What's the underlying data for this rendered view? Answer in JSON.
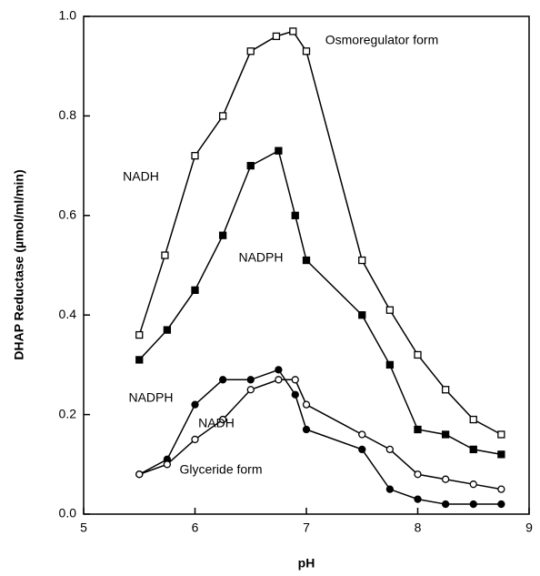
{
  "chart_data": {
    "type": "line",
    "xlabel": "pH",
    "ylabel": "DHAP Reductase (µmol/ml/min)",
    "xlim": [
      5,
      9
    ],
    "xticks": [
      5,
      6,
      7,
      8,
      9
    ],
    "ylim": [
      0,
      1
    ],
    "yticks": [
      {
        "value": 0,
        "label": "0.0"
      },
      0.2,
      0.4,
      0.6,
      0.8,
      {
        "value": 1,
        "label": "1.0"
      }
    ],
    "grid": false,
    "annotations": [
      "Osmoregulator form",
      "NADH",
      "NADPH",
      "NADPH",
      "NADH",
      "Glyceride form"
    ],
    "series": [
      {
        "color": "#000000",
        "marker": "square",
        "filled": false,
        "x": [
          5.5,
          5.73,
          6,
          6.25,
          6.5,
          6.73,
          6.88,
          7,
          7.5,
          7.75,
          8,
          8.25,
          8.5,
          8.75
        ],
        "values": [
          0.36,
          0.52,
          0.72,
          0.8,
          0.93,
          0.96,
          0.97,
          0.93,
          0.51,
          0.41,
          0.32,
          0.25,
          0.19,
          0.16
        ]
      },
      {
        "color": "#000000",
        "marker": "square",
        "filled": true,
        "x": [
          5.5,
          5.75,
          6,
          6.25,
          6.5,
          6.75,
          6.9,
          7,
          7.5,
          7.75,
          8,
          8.25,
          8.5,
          8.75
        ],
        "values": [
          0.31,
          0.37,
          0.45,
          0.56,
          0.7,
          0.73,
          0.6,
          0.51,
          0.4,
          0.3,
          0.17,
          0.16,
          0.13,
          0.12
        ]
      },
      {
        "color": "#000000",
        "marker": "circle",
        "filled": true,
        "x": [
          5.5,
          5.75,
          6,
          6.25,
          6.5,
          6.75,
          6.9,
          7,
          7.5,
          7.75,
          8,
          8.25,
          8.5,
          8.75
        ],
        "values": [
          0.08,
          0.11,
          0.22,
          0.27,
          0.27,
          0.29,
          0.24,
          0.17,
          0.13,
          0.05,
          0.03,
          0.02,
          0.02,
          0.02
        ]
      },
      {
        "color": "#000000",
        "marker": "circle",
        "filled": false,
        "x": [
          5.5,
          5.75,
          6,
          6.25,
          6.5,
          6.75,
          6.9,
          7,
          7.5,
          7.75,
          8,
          8.25,
          8.5,
          8.75
        ],
        "values": [
          0.08,
          0.1,
          0.15,
          0.19,
          0.25,
          0.27,
          0.27,
          0.22,
          0.16,
          0.13,
          0.08,
          0.07,
          0.06,
          0.05
        ]
      }
    ]
  }
}
